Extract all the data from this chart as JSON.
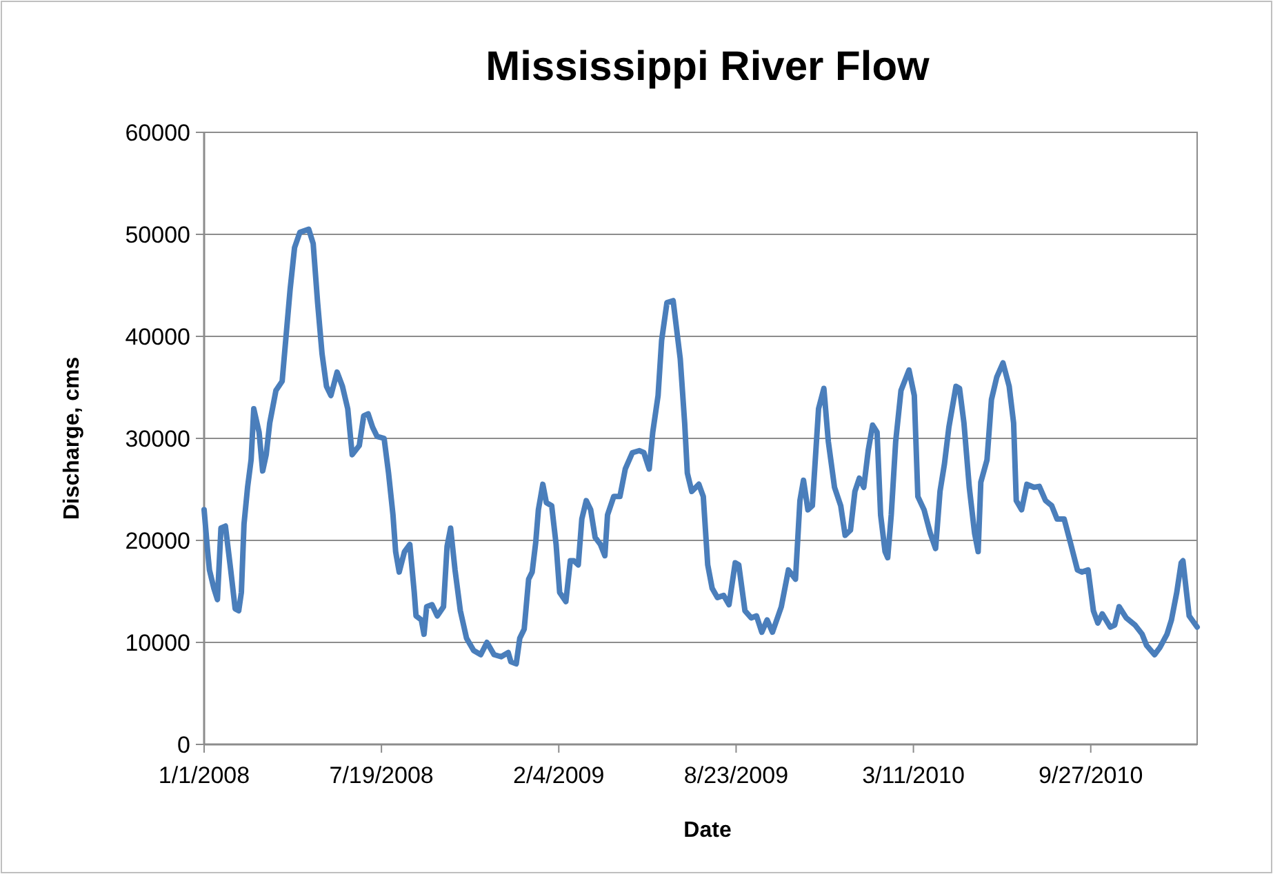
{
  "chart_data": {
    "type": "line",
    "title": "Mississippi River Flow",
    "xlabel": "Date",
    "ylabel": "Discharge, cms",
    "x": [
      "2008-01-01",
      "2008-01-05",
      "2008-01-07",
      "2008-01-12",
      "2008-01-16",
      "2008-01-20",
      "2008-01-25",
      "2008-01-31",
      "2008-02-05",
      "2008-02-09",
      "2008-02-12",
      "2008-02-15",
      "2008-02-19",
      "2008-02-23",
      "2008-02-26",
      "2008-03-03",
      "2008-03-07",
      "2008-03-11",
      "2008-03-15",
      "2008-03-22",
      "2008-03-29",
      "2008-04-02",
      "2008-04-07",
      "2008-04-12",
      "2008-04-18",
      "2008-04-28",
      "2008-05-03",
      "2008-05-08",
      "2008-05-13",
      "2008-05-18",
      "2008-05-23",
      "2008-05-30",
      "2008-06-05",
      "2008-06-11",
      "2008-06-16",
      "2008-06-24",
      "2008-06-29",
      "2008-07-04",
      "2008-07-09",
      "2008-07-14",
      "2008-07-22",
      "2008-07-27",
      "2008-08-01",
      "2008-08-04",
      "2008-08-08",
      "2008-08-14",
      "2008-08-20",
      "2008-08-25",
      "2008-08-27",
      "2008-09-02",
      "2008-09-05",
      "2008-09-08",
      "2008-09-14",
      "2008-09-20",
      "2008-09-27",
      "2008-10-01",
      "2008-10-05",
      "2008-10-10",
      "2008-10-16",
      "2008-10-23",
      "2008-10-31",
      "2008-11-08",
      "2008-11-15",
      "2008-11-23",
      "2008-12-01",
      "2008-12-09",
      "2008-12-12",
      "2008-12-18",
      "2008-12-22",
      "2008-12-27",
      "2009-01-01",
      "2009-01-05",
      "2009-01-09",
      "2009-01-12",
      "2009-01-17",
      "2009-01-21",
      "2009-01-27",
      "2009-02-01",
      "2009-02-05",
      "2009-02-12",
      "2009-02-17",
      "2009-02-21",
      "2009-02-26",
      "2009-03-02",
      "2009-03-07",
      "2009-03-12",
      "2009-03-17",
      "2009-03-23",
      "2009-03-28",
      "2009-03-31",
      "2009-04-07",
      "2009-04-14",
      "2009-04-20",
      "2009-04-28",
      "2009-05-06",
      "2009-05-11",
      "2009-05-17",
      "2009-05-21",
      "2009-05-27",
      "2009-05-31",
      "2009-06-06",
      "2009-06-13",
      "2009-06-21",
      "2009-06-26",
      "2009-06-29",
      "2009-07-04",
      "2009-07-12",
      "2009-07-17",
      "2009-07-22",
      "2009-07-27",
      "2009-08-02",
      "2009-08-09",
      "2009-08-15",
      "2009-08-22",
      "2009-08-26",
      "2009-09-02",
      "2009-09-09",
      "2009-09-15",
      "2009-09-21",
      "2009-09-27",
      "2009-10-03",
      "2009-10-13",
      "2009-10-21",
      "2009-10-29",
      "2009-11-03",
      "2009-11-07",
      "2009-11-12",
      "2009-11-17",
      "2009-11-24",
      "2009-11-30",
      "2009-12-05",
      "2009-12-12",
      "2009-12-19",
      "2009-12-24",
      "2009-12-30",
      "2010-01-04",
      "2010-01-09",
      "2010-01-14",
      "2010-01-19",
      "2010-01-24",
      "2010-01-29",
      "2010-02-02",
      "2010-02-07",
      "2010-02-10",
      "2010-02-14",
      "2010-02-19",
      "2010-02-25",
      "2010-03-06",
      "2010-03-12",
      "2010-03-16",
      "2010-03-23",
      "2010-03-30",
      "2010-04-05",
      "2010-04-10",
      "2010-04-15",
      "2010-04-20",
      "2010-04-28",
      "2010-05-02",
      "2010-05-07",
      "2010-05-13",
      "2010-05-19",
      "2010-05-23",
      "2010-05-26",
      "2010-06-02",
      "2010-06-07",
      "2010-06-13",
      "2010-06-20",
      "2010-06-27",
      "2010-07-02",
      "2010-07-05",
      "2010-07-11",
      "2010-07-17",
      "2010-07-25",
      "2010-07-31",
      "2010-08-07",
      "2010-08-14",
      "2010-08-20",
      "2010-08-28",
      "2010-09-04",
      "2010-09-12",
      "2010-09-17",
      "2010-09-24",
      "2010-09-30",
      "2010-10-05",
      "2010-10-10",
      "2010-10-19",
      "2010-10-24",
      "2010-10-29",
      "2010-11-06",
      "2010-11-16",
      "2010-11-24",
      "2010-11-29",
      "2010-12-08",
      "2010-12-14",
      "2010-12-22",
      "2010-12-27",
      "2011-01-02",
      "2011-01-07",
      "2011-01-09",
      "2011-01-13",
      "2011-01-16",
      "2011-01-25"
    ],
    "series": [
      {
        "color": "#4a7ebb",
        "values": [
          23000,
          18900,
          17100,
          15300,
          14200,
          21200,
          21400,
          17100,
          13300,
          13100,
          14900,
          21600,
          25200,
          27900,
          32900,
          30600,
          26800,
          28400,
          31500,
          34700,
          35600,
          39600,
          44600,
          48700,
          50200,
          50500,
          49100,
          43300,
          38300,
          35100,
          34200,
          36500,
          35100,
          32900,
          28400,
          29300,
          32200,
          32400,
          31100,
          30200,
          30000,
          26600,
          22500,
          18900,
          16900,
          18900,
          19600,
          14900,
          12600,
          12200,
          10800,
          13500,
          13700,
          12600,
          13500,
          19400,
          21200,
          17100,
          13100,
          10400,
          9200,
          8800,
          10000,
          8800,
          8600,
          9000,
          8100,
          7900,
          10400,
          11300,
          16200,
          16900,
          19800,
          23000,
          25500,
          23700,
          23400,
          19600,
          14900,
          14000,
          18000,
          18000,
          17600,
          22100,
          23900,
          23000,
          20300,
          19600,
          18500,
          22500,
          24300,
          24300,
          27000,
          28600,
          28800,
          28600,
          27000,
          30600,
          34200,
          39600,
          43300,
          43500,
          37800,
          31500,
          26600,
          24800,
          25500,
          24300,
          17600,
          15300,
          14400,
          14600,
          13700,
          17800,
          17600,
          13100,
          12400,
          12600,
          11000,
          12200,
          11000,
          13500,
          17100,
          16200,
          23900,
          25900,
          23000,
          23400,
          32900,
          34900,
          29700,
          25200,
          23400,
          20500,
          21000,
          24800,
          26100,
          25200,
          28800,
          31300,
          30600,
          22500,
          18900,
          18300,
          22500,
          29700,
          34700,
          36700,
          34200,
          24300,
          23000,
          20700,
          19200,
          24800,
          27500,
          31100,
          35100,
          34900,
          31500,
          25200,
          20700,
          18900,
          25700,
          27900,
          33800,
          36000,
          37400,
          35100,
          31500,
          23900,
          23000,
          25500,
          25200,
          25300,
          23900,
          23400,
          22100,
          22100,
          19800,
          17100,
          16900,
          17100,
          13100,
          11900,
          12800,
          11500,
          11700,
          13500,
          12400,
          11700,
          10800,
          9700,
          8800,
          9500,
          10800,
          12200,
          14900,
          17800,
          18000,
          14900,
          12600,
          11500
        ]
      }
    ],
    "xlim": [
      "2008-01-01",
      "2011-01-25"
    ],
    "xticks": [
      {
        "value": "2008-01-01",
        "label": "1/1/2008"
      },
      {
        "value": "2008-07-19",
        "label": "7/19/2008"
      },
      {
        "value": "2009-02-04",
        "label": "2/4/2009"
      },
      {
        "value": "2009-08-23",
        "label": "8/23/2009"
      },
      {
        "value": "2010-03-11",
        "label": "3/11/2010"
      },
      {
        "value": "2010-09-27",
        "label": "9/27/2010"
      }
    ],
    "ylim": [
      0,
      60000
    ],
    "yticks": [
      0,
      10000,
      20000,
      30000,
      40000,
      50000,
      60000
    ],
    "grid": "y",
    "marker": "none",
    "line_style": "solid"
  }
}
